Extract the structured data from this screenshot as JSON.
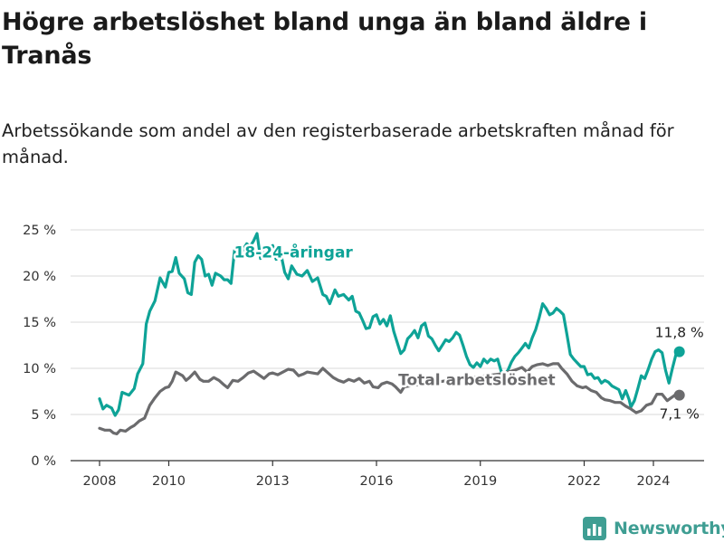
{
  "title": "Högre arbetslöshet bland unga än bland äldre i Tranås",
  "subtitle": "Arbetssökande som andel av den registerbaserade arbetskraften månad för månad.",
  "brand": {
    "name": "Newsworthy",
    "color": "#3f9e93"
  },
  "chart_data": {
    "type": "line",
    "x_range": [
      2007.6,
      2025.8
    ],
    "ylim": [
      0,
      25
    ],
    "grid": true,
    "x_ticks": [
      {
        "value": 2008,
        "label": "2008"
      },
      {
        "value": 2010,
        "label": "2010"
      },
      {
        "value": 2013,
        "label": "2013"
      },
      {
        "value": 2016,
        "label": "2016"
      },
      {
        "value": 2019,
        "label": "2019"
      },
      {
        "value": 2022,
        "label": "2022"
      },
      {
        "value": 2024,
        "label": "2024"
      }
    ],
    "y_ticks": [
      {
        "value": 0,
        "label": "0 %"
      },
      {
        "value": 5,
        "label": "5 %"
      },
      {
        "value": 10,
        "label": "10 %"
      },
      {
        "value": 15,
        "label": "15 %"
      },
      {
        "value": 20,
        "label": "20 %"
      },
      {
        "value": 25,
        "label": "25 %"
      }
    ],
    "series": [
      {
        "name": "18-24-åringar",
        "color": "#0ea397",
        "end_label": "11,8 %",
        "points": [
          [
            2008.0,
            6.7
          ],
          [
            2008.1,
            5.6
          ],
          [
            2008.2,
            6.0
          ],
          [
            2008.35,
            5.7
          ],
          [
            2008.45,
            4.9
          ],
          [
            2008.55,
            5.5
          ],
          [
            2008.65,
            7.4
          ],
          [
            2008.85,
            7.1
          ],
          [
            2009.0,
            7.8
          ],
          [
            2009.1,
            9.4
          ],
          [
            2009.25,
            10.5
          ],
          [
            2009.35,
            14.8
          ],
          [
            2009.45,
            16.2
          ],
          [
            2009.6,
            17.3
          ],
          [
            2009.75,
            19.8
          ],
          [
            2009.9,
            18.8
          ],
          [
            2010.0,
            20.4
          ],
          [
            2010.1,
            20.5
          ],
          [
            2010.2,
            22.0
          ],
          [
            2010.3,
            20.3
          ],
          [
            2010.45,
            19.7
          ],
          [
            2010.55,
            18.2
          ],
          [
            2010.65,
            18.0
          ],
          [
            2010.75,
            21.5
          ],
          [
            2010.85,
            22.2
          ],
          [
            2010.95,
            21.8
          ],
          [
            2011.05,
            20.0
          ],
          [
            2011.15,
            20.2
          ],
          [
            2011.25,
            19.0
          ],
          [
            2011.35,
            20.3
          ],
          [
            2011.5,
            20.0
          ],
          [
            2011.6,
            19.6
          ],
          [
            2011.7,
            19.6
          ],
          [
            2011.8,
            19.2
          ],
          [
            2011.9,
            22.8
          ],
          [
            2012.0,
            23.3
          ],
          [
            2012.1,
            22.6
          ],
          [
            2012.25,
            23.5
          ],
          [
            2012.35,
            23.2
          ],
          [
            2012.45,
            23.8
          ],
          [
            2012.55,
            24.6
          ],
          [
            2012.65,
            21.9
          ],
          [
            2012.75,
            23.0
          ],
          [
            2012.85,
            22.8
          ],
          [
            2013.0,
            23.3
          ],
          [
            2013.1,
            21.8
          ],
          [
            2013.25,
            22.2
          ],
          [
            2013.35,
            20.4
          ],
          [
            2013.45,
            19.7
          ],
          [
            2013.55,
            21.1
          ],
          [
            2013.7,
            20.2
          ],
          [
            2013.85,
            20.0
          ],
          [
            2014.0,
            20.6
          ],
          [
            2014.15,
            19.4
          ],
          [
            2014.3,
            19.8
          ],
          [
            2014.45,
            18.0
          ],
          [
            2014.55,
            17.8
          ],
          [
            2014.65,
            17.0
          ],
          [
            2014.8,
            18.5
          ],
          [
            2014.9,
            17.8
          ],
          [
            2015.05,
            18.0
          ],
          [
            2015.2,
            17.4
          ],
          [
            2015.3,
            17.8
          ],
          [
            2015.4,
            16.2
          ],
          [
            2015.5,
            16.0
          ],
          [
            2015.6,
            15.2
          ],
          [
            2015.7,
            14.3
          ],
          [
            2015.8,
            14.4
          ],
          [
            2015.9,
            15.6
          ],
          [
            2016.0,
            15.8
          ],
          [
            2016.1,
            14.8
          ],
          [
            2016.2,
            15.3
          ],
          [
            2016.3,
            14.6
          ],
          [
            2016.4,
            15.7
          ],
          [
            2016.5,
            14.0
          ],
          [
            2016.6,
            12.8
          ],
          [
            2016.7,
            11.6
          ],
          [
            2016.8,
            12.0
          ],
          [
            2016.9,
            13.2
          ],
          [
            2017.0,
            13.6
          ],
          [
            2017.1,
            14.1
          ],
          [
            2017.2,
            13.3
          ],
          [
            2017.3,
            14.6
          ],
          [
            2017.4,
            14.9
          ],
          [
            2017.5,
            13.5
          ],
          [
            2017.6,
            13.2
          ],
          [
            2017.7,
            12.5
          ],
          [
            2017.8,
            11.9
          ],
          [
            2017.9,
            12.5
          ],
          [
            2018.0,
            13.1
          ],
          [
            2018.1,
            12.9
          ],
          [
            2018.2,
            13.3
          ],
          [
            2018.3,
            13.9
          ],
          [
            2018.4,
            13.6
          ],
          [
            2018.5,
            12.5
          ],
          [
            2018.6,
            11.3
          ],
          [
            2018.7,
            10.4
          ],
          [
            2018.8,
            10.1
          ],
          [
            2018.9,
            10.6
          ],
          [
            2019.0,
            10.2
          ],
          [
            2019.1,
            11.0
          ],
          [
            2019.2,
            10.6
          ],
          [
            2019.3,
            11.0
          ],
          [
            2019.4,
            10.8
          ],
          [
            2019.5,
            11.0
          ],
          [
            2019.6,
            9.7
          ],
          [
            2019.7,
            9.3
          ],
          [
            2019.8,
            9.8
          ],
          [
            2019.9,
            10.7
          ],
          [
            2020.0,
            11.3
          ],
          [
            2020.1,
            11.7
          ],
          [
            2020.2,
            12.2
          ],
          [
            2020.3,
            12.7
          ],
          [
            2020.4,
            12.2
          ],
          [
            2020.5,
            13.3
          ],
          [
            2020.6,
            14.2
          ],
          [
            2020.7,
            15.5
          ],
          [
            2020.8,
            17.0
          ],
          [
            2020.9,
            16.5
          ],
          [
            2021.0,
            15.8
          ],
          [
            2021.1,
            16.0
          ],
          [
            2021.2,
            16.5
          ],
          [
            2021.3,
            16.2
          ],
          [
            2021.4,
            15.8
          ],
          [
            2021.5,
            13.7
          ],
          [
            2021.6,
            11.5
          ],
          [
            2021.7,
            11.0
          ],
          [
            2021.8,
            10.6
          ],
          [
            2021.9,
            10.2
          ],
          [
            2022.0,
            10.2
          ],
          [
            2022.1,
            9.3
          ],
          [
            2022.2,
            9.4
          ],
          [
            2022.3,
            8.9
          ],
          [
            2022.4,
            9.0
          ],
          [
            2022.5,
            8.4
          ],
          [
            2022.6,
            8.7
          ],
          [
            2022.7,
            8.5
          ],
          [
            2022.8,
            8.1
          ],
          [
            2022.9,
            7.9
          ],
          [
            2023.0,
            7.7
          ],
          [
            2023.1,
            6.7
          ],
          [
            2023.2,
            7.6
          ],
          [
            2023.3,
            6.6
          ],
          [
            2023.35,
            5.8
          ],
          [
            2023.45,
            6.5
          ],
          [
            2023.55,
            7.8
          ],
          [
            2023.65,
            9.2
          ],
          [
            2023.75,
            8.9
          ],
          [
            2023.85,
            9.9
          ],
          [
            2023.95,
            11.0
          ],
          [
            2024.05,
            11.8
          ],
          [
            2024.15,
            12.0
          ],
          [
            2024.25,
            11.7
          ],
          [
            2024.35,
            9.8
          ],
          [
            2024.45,
            8.4
          ],
          [
            2024.55,
            10.0
          ],
          [
            2024.65,
            11.5
          ],
          [
            2024.75,
            11.8
          ]
        ]
      },
      {
        "name": "Total arbetslöshet",
        "color": "#6b6b6d",
        "end_label": "7,1 %",
        "points": [
          [
            2008.0,
            3.5
          ],
          [
            2008.15,
            3.3
          ],
          [
            2008.3,
            3.3
          ],
          [
            2008.4,
            3.0
          ],
          [
            2008.5,
            2.9
          ],
          [
            2008.6,
            3.3
          ],
          [
            2008.75,
            3.2
          ],
          [
            2008.9,
            3.6
          ],
          [
            2009.0,
            3.8
          ],
          [
            2009.15,
            4.3
          ],
          [
            2009.3,
            4.6
          ],
          [
            2009.45,
            6.0
          ],
          [
            2009.6,
            6.8
          ],
          [
            2009.75,
            7.5
          ],
          [
            2009.9,
            7.9
          ],
          [
            2010.0,
            8.0
          ],
          [
            2010.1,
            8.6
          ],
          [
            2010.2,
            9.6
          ],
          [
            2010.3,
            9.4
          ],
          [
            2010.4,
            9.2
          ],
          [
            2010.5,
            8.7
          ],
          [
            2010.6,
            9.0
          ],
          [
            2010.75,
            9.6
          ],
          [
            2010.9,
            8.8
          ],
          [
            2011.0,
            8.6
          ],
          [
            2011.15,
            8.6
          ],
          [
            2011.3,
            9.0
          ],
          [
            2011.45,
            8.7
          ],
          [
            2011.6,
            8.2
          ],
          [
            2011.7,
            7.9
          ],
          [
            2011.85,
            8.7
          ],
          [
            2012.0,
            8.6
          ],
          [
            2012.15,
            9.0
          ],
          [
            2012.3,
            9.5
          ],
          [
            2012.45,
            9.7
          ],
          [
            2012.6,
            9.3
          ],
          [
            2012.75,
            8.9
          ],
          [
            2012.9,
            9.4
          ],
          [
            2013.0,
            9.5
          ],
          [
            2013.15,
            9.3
          ],
          [
            2013.3,
            9.6
          ],
          [
            2013.45,
            9.9
          ],
          [
            2013.6,
            9.8
          ],
          [
            2013.75,
            9.2
          ],
          [
            2013.9,
            9.4
          ],
          [
            2014.0,
            9.6
          ],
          [
            2014.15,
            9.5
          ],
          [
            2014.3,
            9.4
          ],
          [
            2014.45,
            10.0
          ],
          [
            2014.6,
            9.5
          ],
          [
            2014.75,
            9.0
          ],
          [
            2014.9,
            8.7
          ],
          [
            2015.05,
            8.5
          ],
          [
            2015.2,
            8.8
          ],
          [
            2015.35,
            8.6
          ],
          [
            2015.5,
            8.9
          ],
          [
            2015.65,
            8.4
          ],
          [
            2015.8,
            8.6
          ],
          [
            2015.9,
            8.0
          ],
          [
            2016.05,
            7.9
          ],
          [
            2016.15,
            8.3
          ],
          [
            2016.3,
            8.5
          ],
          [
            2016.45,
            8.3
          ],
          [
            2016.55,
            8.0
          ],
          [
            2016.7,
            7.4
          ],
          [
            2016.8,
            8.0
          ],
          [
            2017.5,
            8.4
          ],
          [
            2019.6,
            9.4
          ],
          [
            2019.8,
            9.6
          ],
          [
            2020.0,
            9.8
          ],
          [
            2020.2,
            10.1
          ],
          [
            2020.35,
            9.6
          ],
          [
            2020.5,
            10.2
          ],
          [
            2020.65,
            10.4
          ],
          [
            2020.8,
            10.5
          ],
          [
            2020.95,
            10.3
          ],
          [
            2021.1,
            10.5
          ],
          [
            2021.25,
            10.5
          ],
          [
            2021.35,
            10.0
          ],
          [
            2021.5,
            9.4
          ],
          [
            2021.65,
            8.6
          ],
          [
            2021.8,
            8.1
          ],
          [
            2021.95,
            7.9
          ],
          [
            2022.05,
            8.0
          ],
          [
            2022.2,
            7.6
          ],
          [
            2022.35,
            7.4
          ],
          [
            2022.5,
            6.8
          ],
          [
            2022.6,
            6.6
          ],
          [
            2022.75,
            6.5
          ],
          [
            2022.9,
            6.3
          ],
          [
            2023.05,
            6.3
          ],
          [
            2023.2,
            5.9
          ],
          [
            2023.35,
            5.6
          ],
          [
            2023.5,
            5.2
          ],
          [
            2023.65,
            5.4
          ],
          [
            2023.8,
            6.0
          ],
          [
            2023.95,
            6.2
          ],
          [
            2024.1,
            7.2
          ],
          [
            2024.25,
            7.2
          ],
          [
            2024.4,
            6.5
          ],
          [
            2024.55,
            6.9
          ],
          [
            2024.65,
            7.2
          ],
          [
            2024.75,
            7.1
          ]
        ]
      }
    ],
    "label_anchors": [
      {
        "series": 0,
        "x": 2013.6,
        "y": 22.0
      },
      {
        "series": 1,
        "x": 2018.9,
        "y": 8.2
      }
    ]
  }
}
